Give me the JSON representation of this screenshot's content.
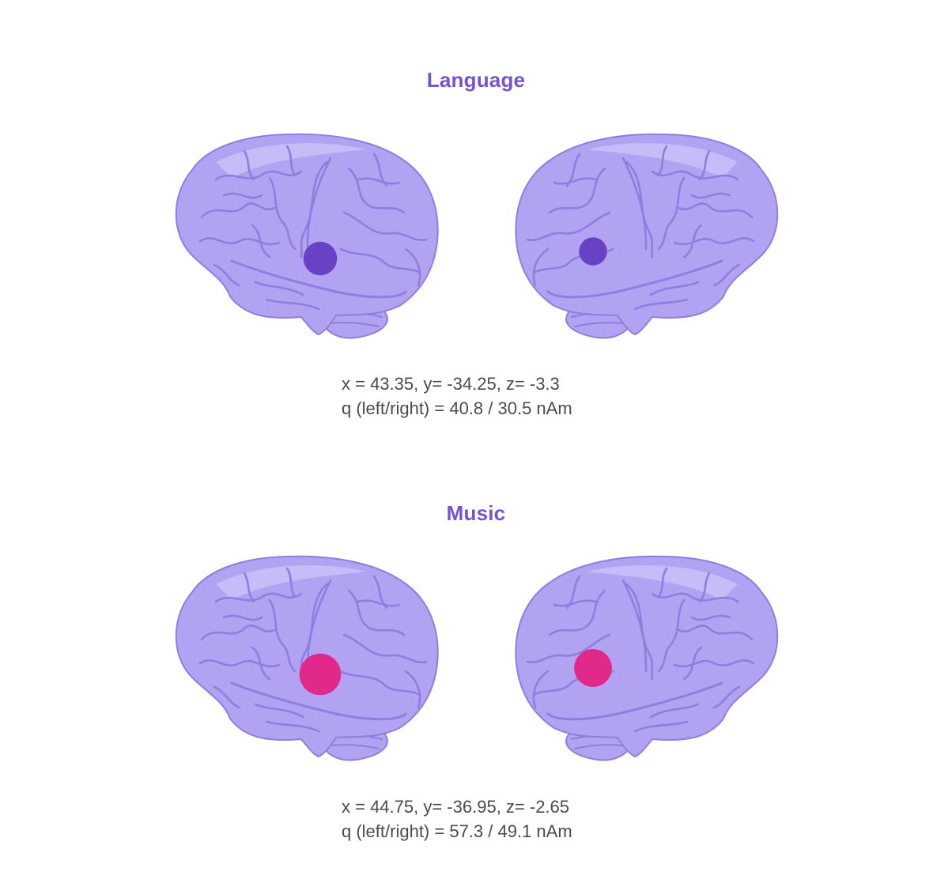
{
  "colors": {
    "title": "#7552d4",
    "brain_fill": "#b2a3f2",
    "brain_fold": "#8e7ee0",
    "brain_highlight": "#d6ccfb",
    "language_dot": "#6742c4",
    "music_dot": "#e0298a",
    "caption_text": "#4a4a52"
  },
  "sections": [
    {
      "title": "Language",
      "dot_color_key": "language_dot",
      "coords_text": "x = 43.35, y= -34.25, z= -3.3",
      "q_text": "q (left/right) = 40.8 / 30.5 nAm",
      "q_left": 40.8,
      "q_right": 30.5
    },
    {
      "title": "Music",
      "dot_color_key": "music_dot",
      "coords_text": "x = 44.75, y= -36.95, z= -2.65",
      "q_text": "q (left/right) = 57.3 / 49.1 nAm",
      "q_left": 57.3,
      "q_right": 49.1
    }
  ]
}
